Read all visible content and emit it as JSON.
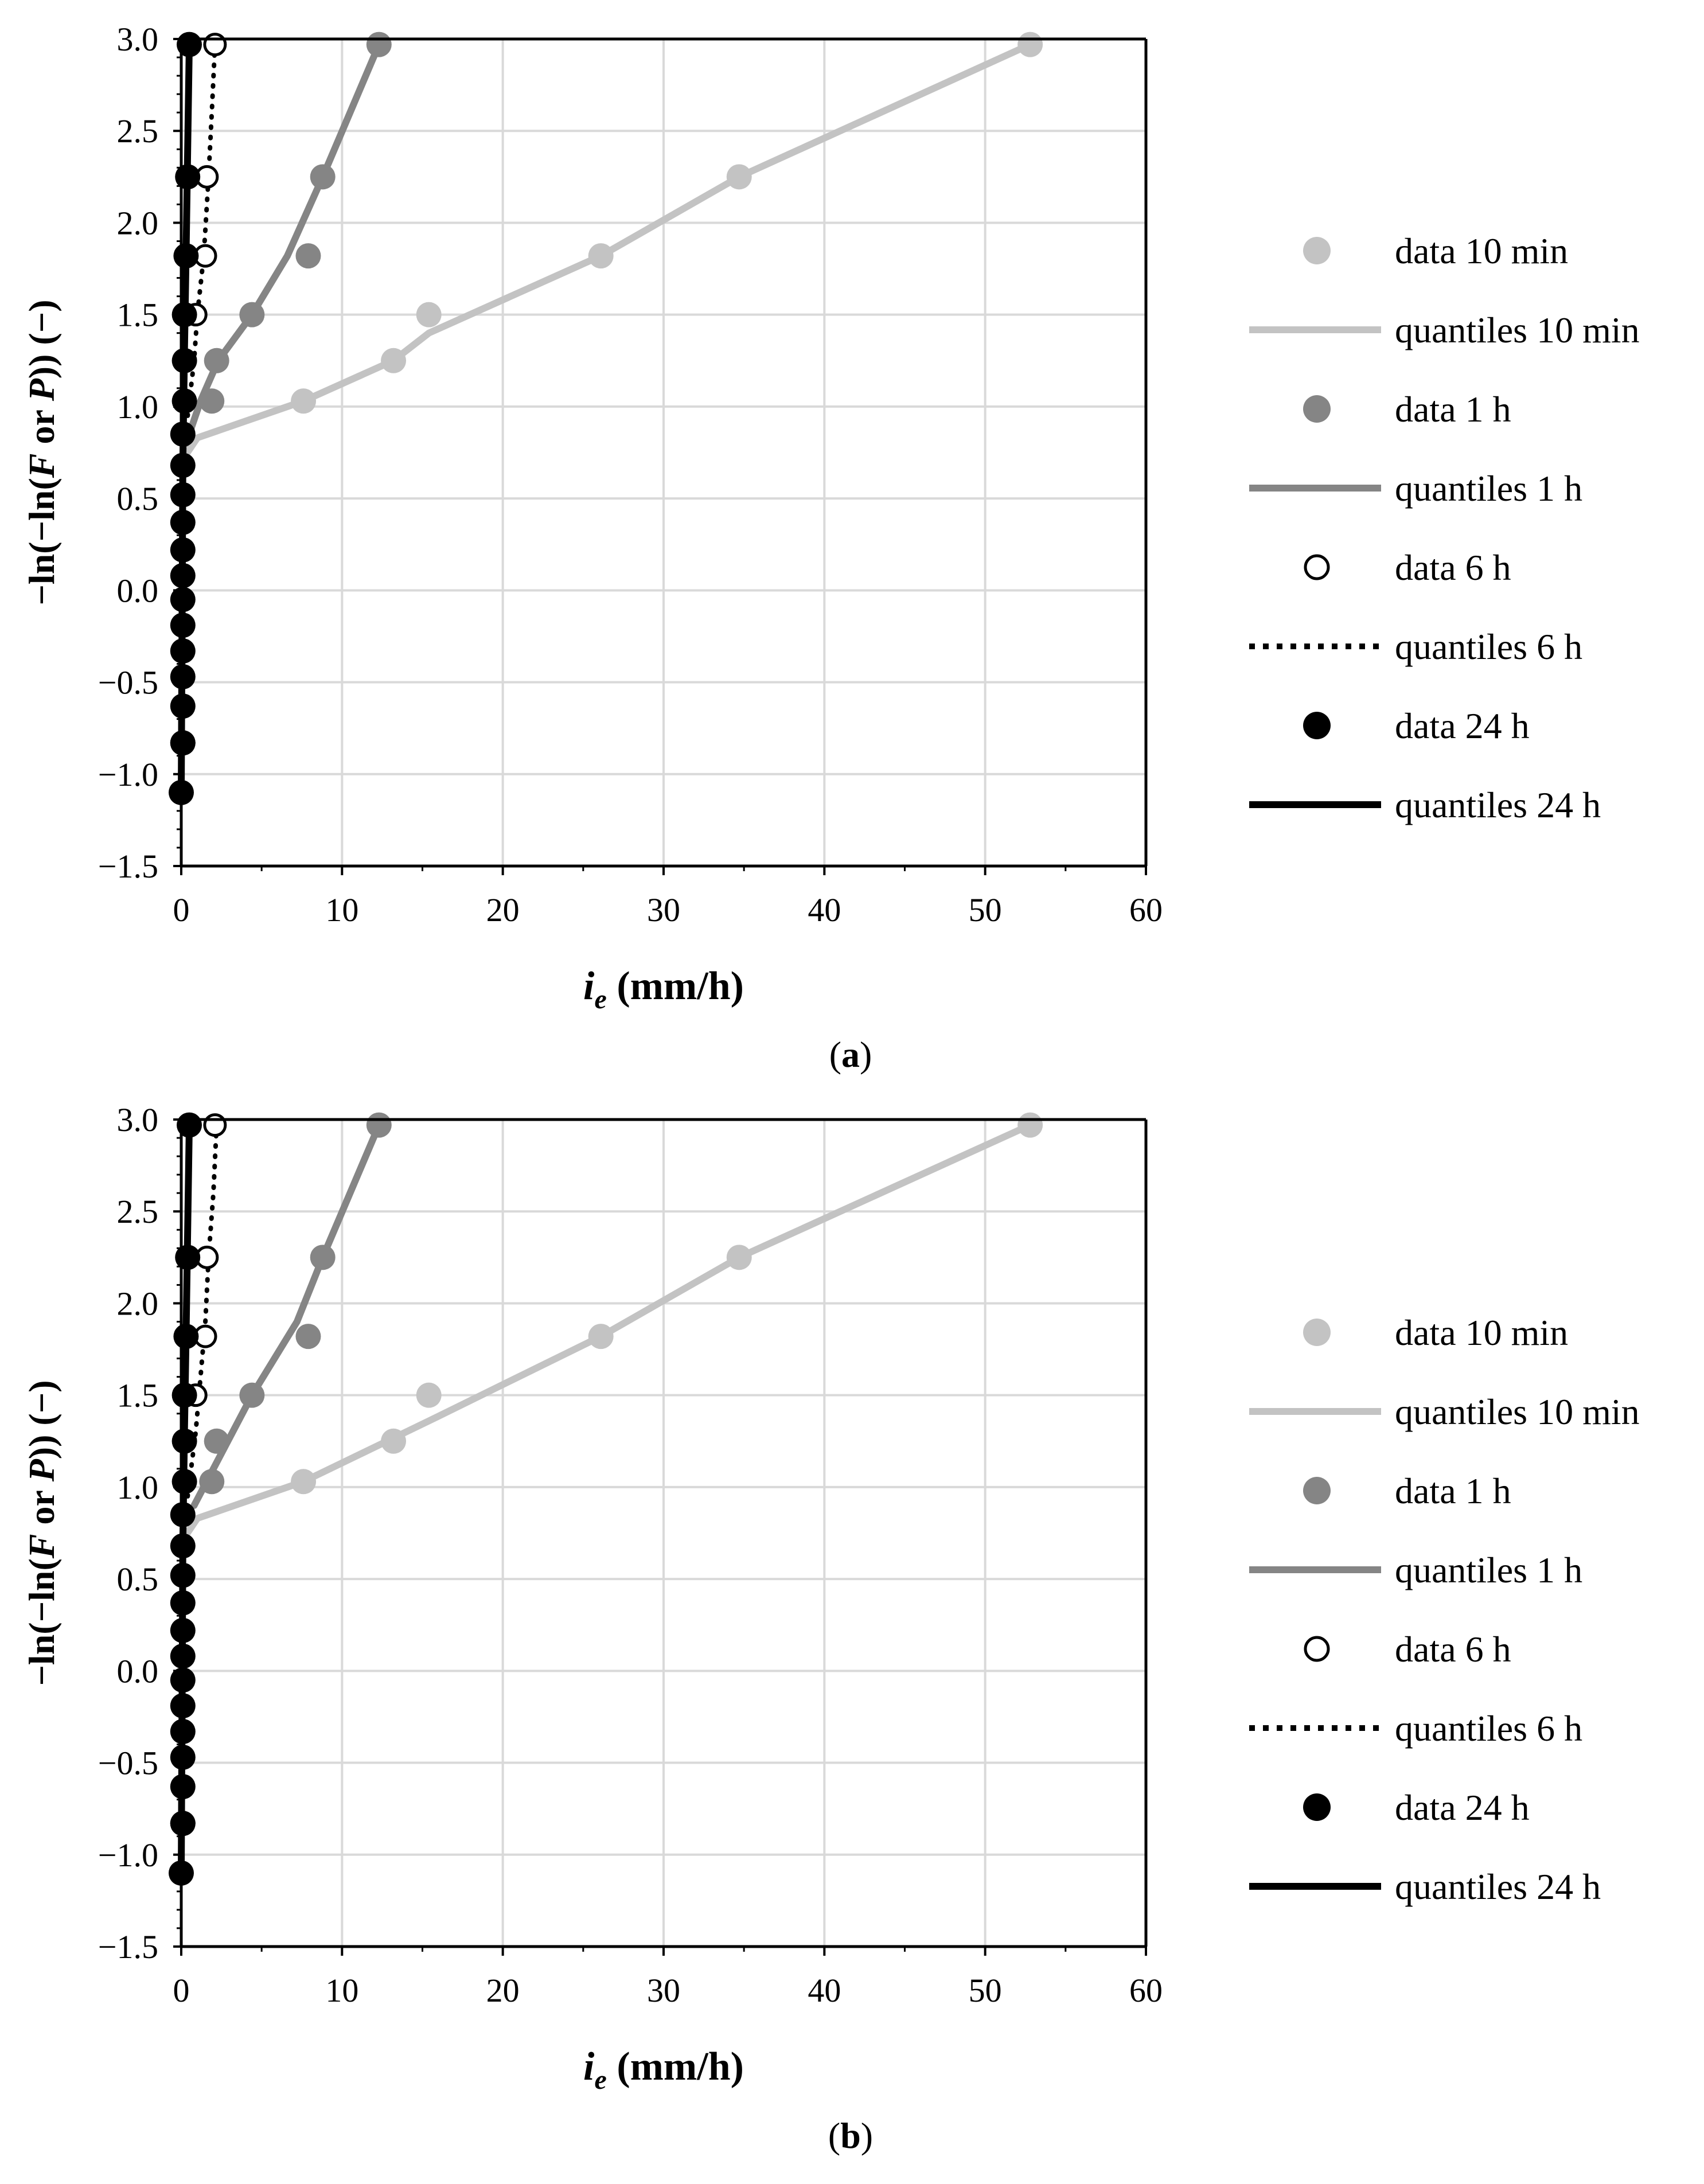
{
  "colors": {
    "light": "#c3c3c3",
    "mid": "#858585",
    "black": "#000000",
    "grid": "#d9d9d9",
    "open_fill": "#ffffff"
  },
  "legend": {
    "items": [
      {
        "label": "data 10 min",
        "kind": "marker",
        "series": "10min"
      },
      {
        "label": "quantiles 10 min",
        "kind": "line",
        "series": "10min"
      },
      {
        "label": "data 1 h",
        "kind": "marker",
        "series": "1h"
      },
      {
        "label": "quantiles 1 h",
        "kind": "line",
        "series": "1h"
      },
      {
        "label": "data 6 h",
        "kind": "marker",
        "series": "6h"
      },
      {
        "label": "quantiles 6 h",
        "kind": "line",
        "series": "6h"
      },
      {
        "label": "data 24 h",
        "kind": "marker",
        "series": "24h"
      },
      {
        "label": "quantiles 24 h",
        "kind": "line",
        "series": "24h"
      }
    ]
  },
  "chart_data": [
    {
      "type": "scatter",
      "caption": "a",
      "xlabel_main": "i",
      "xlabel_sub": "e",
      "xlabel_rest": " (mm/h)",
      "ylabel_pre": "−ln(−ln(",
      "ylabel_F": "F",
      "ylabel_mid": " or ",
      "ylabel_P": "P",
      "ylabel_post": ")) (−)",
      "xlim": [
        0,
        60
      ],
      "ylim": [
        -1.5,
        3.0
      ],
      "xticks": [
        0,
        10,
        20,
        30,
        40,
        50,
        60
      ],
      "yticks": [
        3.0,
        2.5,
        2.0,
        1.5,
        1.0,
        0.5,
        0.0,
        -0.5,
        -1.0,
        -1.5
      ],
      "ytick_labels": [
        "3.0",
        "2.5",
        "2.0",
        "1.5",
        "1.0",
        "0.5",
        "0.0",
        "−0.5",
        "−1.0",
        "−1.5"
      ],
      "xtick_labels": [
        "0",
        "10",
        "20",
        "30",
        "40",
        "50",
        "60"
      ],
      "grid": true,
      "series": [
        {
          "id": "10min",
          "name": "data 10 min",
          "marker": "filled",
          "color": "light",
          "x": [
            52.8,
            34.7,
            26.1,
            15.4,
            13.2,
            7.6
          ],
          "y": [
            2.97,
            2.25,
            1.82,
            1.5,
            1.25,
            1.03
          ]
        },
        {
          "id": "1h",
          "name": "data 1 h",
          "marker": "filled",
          "color": "mid",
          "x": [
            12.3,
            8.8,
            7.9,
            4.4,
            2.2,
            1.9
          ],
          "y": [
            2.97,
            2.25,
            1.82,
            1.5,
            1.25,
            1.03
          ]
        },
        {
          "id": "6h",
          "name": "data 6 h",
          "marker": "open",
          "color": "black",
          "x": [
            2.1,
            1.6,
            1.5,
            0.9
          ],
          "y": [
            2.97,
            2.25,
            1.82,
            1.5
          ]
        },
        {
          "id": "24h",
          "name": "data 24 h",
          "marker": "filled",
          "color": "black",
          "x": [
            0.5,
            0.4,
            0.3,
            0.2,
            0.2,
            0.2,
            0.1,
            0.1,
            0.1,
            0.1,
            0.1,
            0.1,
            0.1,
            0.1,
            0.1,
            0.1,
            0.1,
            0.1,
            0.1,
            0.0
          ],
          "y": [
            2.97,
            2.25,
            1.82,
            1.5,
            1.25,
            1.03,
            0.85,
            0.68,
            0.52,
            0.37,
            0.22,
            0.08,
            -0.05,
            -0.19,
            -0.33,
            -0.47,
            -0.63,
            -0.83,
            -0.83,
            -1.1
          ]
        }
      ],
      "quantiles": [
        {
          "id": "10min",
          "name": "quantiles 10 min",
          "color": "light",
          "dash": "solid",
          "x": [
            0.0,
            1.0,
            7.6,
            13.2,
            15.4,
            26.1,
            34.7,
            52.8
          ],
          "y": [
            0.7,
            0.83,
            1.03,
            1.25,
            1.4,
            1.82,
            2.25,
            2.97
          ]
        },
        {
          "id": "1h",
          "name": "quantiles 1 h",
          "color": "mid",
          "dash": "solid",
          "x": [
            0.3,
            1.2,
            2.3,
            4.4,
            6.6,
            8.8,
            12.3
          ],
          "y": [
            0.8,
            1.03,
            1.25,
            1.5,
            1.82,
            2.25,
            2.97
          ]
        },
        {
          "id": "6h",
          "name": "quantiles 6 h",
          "color": "black",
          "dash": "dotted",
          "x": [
            0.4,
            0.8,
            1.0,
            1.4,
            1.7,
            1.9,
            2.1
          ],
          "y": [
            0.95,
            1.25,
            1.5,
            1.82,
            2.25,
            2.6,
            2.97
          ]
        },
        {
          "id": "24h",
          "name": "quantiles 24 h",
          "color": "black",
          "dash": "solid",
          "x": [
            0.0,
            0.1,
            0.2,
            0.3,
            0.4,
            0.5
          ],
          "y": [
            -1.1,
            0.7,
            1.3,
            1.82,
            2.4,
            2.97
          ]
        }
      ]
    },
    {
      "type": "scatter",
      "caption": "b",
      "xlabel_main": "i",
      "xlabel_sub": "e",
      "xlabel_rest": " (mm/h)",
      "ylabel_pre": "−ln(−ln(",
      "ylabel_F": "F",
      "ylabel_mid": " or ",
      "ylabel_P": "P",
      "ylabel_post": ")) (−)",
      "xlim": [
        0,
        60
      ],
      "ylim": [
        -1.5,
        3.0
      ],
      "xticks": [
        0,
        10,
        20,
        30,
        40,
        50,
        60
      ],
      "yticks": [
        3.0,
        2.5,
        2.0,
        1.5,
        1.0,
        0.5,
        0.0,
        -0.5,
        -1.0,
        -1.5
      ],
      "ytick_labels": [
        "3.0",
        "2.5",
        "2.0",
        "1.5",
        "1.0",
        "0.5",
        "0.0",
        "−0.5",
        "−1.0",
        "−1.5"
      ],
      "xtick_labels": [
        "0",
        "10",
        "20",
        "30",
        "40",
        "50",
        "60"
      ],
      "grid": true,
      "series": [
        {
          "id": "10min",
          "name": "data 10 min",
          "marker": "filled",
          "color": "light",
          "x": [
            52.8,
            34.7,
            26.1,
            15.4,
            13.2,
            7.6
          ],
          "y": [
            2.97,
            2.25,
            1.82,
            1.5,
            1.25,
            1.03
          ]
        },
        {
          "id": "1h",
          "name": "data 1 h",
          "marker": "filled",
          "color": "mid",
          "x": [
            12.3,
            8.8,
            7.9,
            4.4,
            2.2,
            1.9
          ],
          "y": [
            2.97,
            2.25,
            1.82,
            1.5,
            1.25,
            1.03
          ]
        },
        {
          "id": "6h",
          "name": "data 6 h",
          "marker": "open",
          "color": "black",
          "x": [
            2.1,
            1.6,
            1.5,
            0.9
          ],
          "y": [
            2.97,
            2.25,
            1.82,
            1.5
          ]
        },
        {
          "id": "24h",
          "name": "data 24 h",
          "marker": "filled",
          "color": "black",
          "x": [
            0.5,
            0.4,
            0.3,
            0.2,
            0.2,
            0.2,
            0.1,
            0.1,
            0.1,
            0.1,
            0.1,
            0.1,
            0.1,
            0.1,
            0.1,
            0.1,
            0.1,
            0.1,
            0.1,
            0.0
          ],
          "y": [
            2.97,
            2.25,
            1.82,
            1.5,
            1.25,
            1.03,
            0.85,
            0.68,
            0.52,
            0.37,
            0.22,
            0.08,
            -0.05,
            -0.19,
            -0.33,
            -0.47,
            -0.63,
            -0.83,
            -0.83,
            -1.1
          ]
        }
      ],
      "quantiles": [
        {
          "id": "10min",
          "name": "quantiles 10 min",
          "color": "light",
          "dash": "solid",
          "x": [
            0.0,
            1.0,
            7.6,
            15.4,
            26.1,
            34.7,
            52.8
          ],
          "y": [
            0.7,
            0.83,
            1.03,
            1.36,
            1.82,
            2.25,
            2.97
          ]
        },
        {
          "id": "1h",
          "name": "quantiles 1 h",
          "color": "mid",
          "dash": "solid",
          "x": [
            0.8,
            2.0,
            4.4,
            7.2,
            8.8,
            12.3
          ],
          "y": [
            0.9,
            1.1,
            1.5,
            1.9,
            2.25,
            2.97
          ]
        },
        {
          "id": "6h",
          "name": "quantiles 6 h",
          "color": "black",
          "dash": "dotted",
          "x": [
            0.4,
            0.9,
            1.2,
            1.5,
            1.7,
            2.0,
            2.2
          ],
          "y": [
            0.95,
            1.3,
            1.6,
            1.9,
            2.25,
            2.6,
            2.97
          ]
        },
        {
          "id": "24h",
          "name": "quantiles 24 h",
          "color": "black",
          "dash": "solid",
          "x": [
            0.0,
            0.1,
            0.2,
            0.3,
            0.4,
            0.5
          ],
          "y": [
            -1.1,
            0.7,
            1.3,
            1.82,
            2.4,
            2.97
          ]
        }
      ]
    }
  ]
}
